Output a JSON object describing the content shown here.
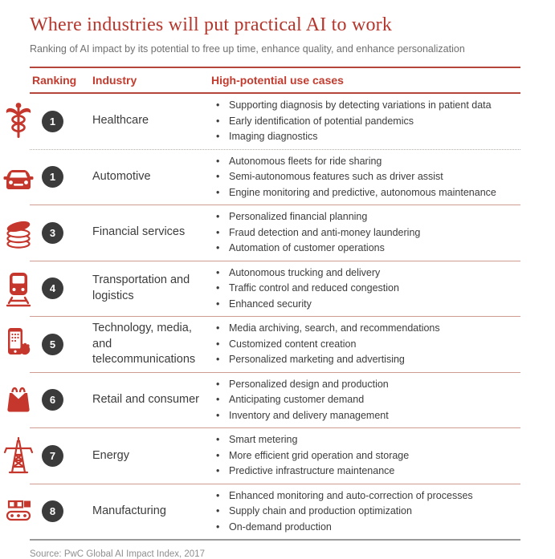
{
  "chart_data": {
    "type": "table",
    "title": "Where industries will put practical AI to work",
    "subtitle": "Ranking of AI impact by its potential to free up time, enhance quality, and enhance personalization",
    "source": "Source: PwC Global AI Impact Index, 2017",
    "columns": [
      "Ranking",
      "Industry",
      "High-potential use cases"
    ],
    "rows": [
      {
        "rank": "1",
        "industry": "Healthcare",
        "icon": "caduceus-icon",
        "use_cases": [
          "Supporting diagnosis by detecting variations in patient data",
          "Early identification of potential pandemics",
          "Imaging diagnostics"
        ]
      },
      {
        "rank": "1",
        "industry": "Automotive",
        "icon": "car-icon",
        "use_cases": [
          "Autonomous fleets for ride sharing",
          "Semi-autonomous features such as driver assist",
          "Engine monitoring and predictive, autonomous maintenance"
        ]
      },
      {
        "rank": "3",
        "industry": "Financial services",
        "icon": "coins-icon",
        "use_cases": [
          "Personalized financial planning",
          "Fraud detection and anti-money laundering",
          "Automation of customer operations"
        ]
      },
      {
        "rank": "4",
        "industry": "Transportation and logistics",
        "icon": "train-icon",
        "use_cases": [
          "Autonomous trucking and delivery",
          "Traffic control and reduced congestion",
          "Enhanced security"
        ]
      },
      {
        "rank": "5",
        "industry": "Technology, media, and telecommunications",
        "icon": "smartphone-touch-icon",
        "use_cases": [
          "Media archiving, search, and recommendations",
          "Customized content creation",
          "Personalized marketing and advertising"
        ]
      },
      {
        "rank": "6",
        "industry": "Retail and consumer",
        "icon": "shopping-bag-icon",
        "use_cases": [
          "Personalized design and production",
          "Anticipating customer demand",
          "Inventory and delivery management"
        ]
      },
      {
        "rank": "7",
        "industry": "Energy",
        "icon": "power-tower-icon",
        "use_cases": [
          "Smart metering",
          "More efficient grid operation and storage",
          "Predictive infrastructure maintenance"
        ]
      },
      {
        "rank": "8",
        "industry": "Manufacturing",
        "icon": "conveyor-icon",
        "use_cases": [
          "Enhanced monitoring and auto-correction of processes",
          "Supply chain and production optimization",
          "On-demand production"
        ]
      }
    ]
  },
  "colors": {
    "title_red": "#b5362c",
    "header_red": "#c23b2e",
    "icon_red": "#c5362c",
    "rank_circle_bg": "#3b3b3b",
    "body_text": "#3c3c3c",
    "muted_text": "#6f6f6f",
    "source_text": "#8f8f8f",
    "divider_pink": "#cf9c91"
  }
}
